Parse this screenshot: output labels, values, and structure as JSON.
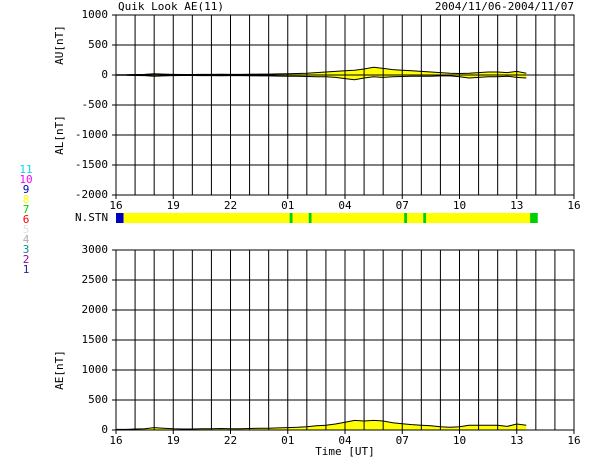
{
  "chart_data": [
    {
      "type": "area",
      "title": "Quik Look AE(11)",
      "subtitle": "2004/11/06-2004/11/07",
      "xlim": [
        0,
        24
      ],
      "xticks": [
        {
          "value": 0,
          "label": "16"
        },
        {
          "value": 3,
          "label": "19"
        },
        {
          "value": 6,
          "label": "22"
        },
        {
          "value": 9,
          "label": "01"
        },
        {
          "value": 12,
          "label": "04"
        },
        {
          "value": 15,
          "label": "07"
        },
        {
          "value": 18,
          "label": "10"
        },
        {
          "value": 21,
          "label": "13"
        },
        {
          "value": 24,
          "label": "16"
        }
      ],
      "xgrid": [
        1,
        2,
        3,
        4,
        5,
        6,
        7,
        8,
        9,
        10,
        11,
        12,
        13,
        14,
        15,
        16,
        17,
        18,
        19,
        20,
        21,
        22,
        23
      ],
      "ylim": [
        -2000,
        1000
      ],
      "yticks": [
        -2000,
        -1500,
        -1000,
        -500,
        0,
        500,
        1000
      ],
      "ylabels": [
        {
          "text": "AU[nT]",
          "at": 500
        },
        {
          "text": "AL[nT]",
          "at": -1000
        }
      ],
      "x": [
        0,
        0.5,
        1,
        1.5,
        2,
        2.5,
        3,
        3.5,
        4,
        4.5,
        5,
        5.5,
        6,
        6.5,
        7,
        7.5,
        8,
        8.5,
        9,
        9.5,
        10,
        10.5,
        11,
        11.5,
        12,
        12.5,
        13,
        13.5,
        14,
        14.5,
        15,
        15.5,
        16,
        16.5,
        17,
        17.5,
        18,
        18.5,
        19,
        19.5,
        20,
        20.5,
        21,
        21.5
      ],
      "series": [
        {
          "color": "#000000",
          "fill": "#ffff00",
          "values": [
            5,
            5,
            8,
            10,
            20,
            15,
            10,
            8,
            8,
            10,
            10,
            12,
            10,
            10,
            12,
            15,
            15,
            18,
            20,
            25,
            30,
            40,
            50,
            60,
            70,
            80,
            100,
            130,
            110,
            90,
            80,
            70,
            60,
            50,
            40,
            30,
            25,
            30,
            40,
            50,
            50,
            40,
            60,
            30
          ]
        },
        {
          "color": "#000000",
          "fill": "#ffff00",
          "values": [
            -5,
            -5,
            -8,
            -10,
            -20,
            -15,
            -10,
            -8,
            -8,
            -10,
            -10,
            -12,
            -10,
            -10,
            -12,
            -15,
            -15,
            -18,
            -20,
            -20,
            -25,
            -30,
            -30,
            -40,
            -60,
            -80,
            -50,
            -30,
            -40,
            -30,
            -25,
            -20,
            -20,
            -20,
            -15,
            -15,
            -30,
            -50,
            -40,
            -30,
            -30,
            -20,
            -40,
            -50
          ]
        }
      ]
    },
    {
      "type": "stations",
      "label": "N.STN",
      "xlim": [
        0,
        24
      ],
      "categories": [
        11,
        10,
        9,
        8,
        7,
        6,
        5,
        4,
        3,
        2,
        1
      ],
      "colors": [
        "#00e0e0",
        "#ff00ff",
        "#0000c0",
        "#ffff00",
        "#00d000",
        "#ff0000",
        "#e0e0e0",
        "#b0b0b0",
        "#009090",
        "#a000a0",
        "#2020a0"
      ],
      "starts": [
        0,
        0.4,
        9.1,
        9.25,
        10.1,
        10.25,
        15.1,
        15.25,
        16.1,
        16.25,
        21.7
      ],
      "ends": [
        0.4,
        9.1,
        9.25,
        10.1,
        10.25,
        15.1,
        15.25,
        16.1,
        16.25,
        21.7,
        22.1
      ],
      "values": [
        9,
        8,
        7,
        8,
        7,
        8,
        7,
        8,
        7,
        8,
        7
      ]
    },
    {
      "type": "area",
      "xlabel": "Time [UT]",
      "xlim": [
        0,
        24
      ],
      "xticks": [
        {
          "value": 0,
          "label": "16"
        },
        {
          "value": 3,
          "label": "19"
        },
        {
          "value": 6,
          "label": "22"
        },
        {
          "value": 9,
          "label": "01"
        },
        {
          "value": 12,
          "label": "04"
        },
        {
          "value": 15,
          "label": "07"
        },
        {
          "value": 18,
          "label": "10"
        },
        {
          "value": 21,
          "label": "13"
        },
        {
          "value": 24,
          "label": "16"
        }
      ],
      "xgrid": [
        1,
        2,
        3,
        4,
        5,
        6,
        7,
        8,
        9,
        10,
        11,
        12,
        13,
        14,
        15,
        16,
        17,
        18,
        19,
        20,
        21,
        22,
        23
      ],
      "ylim": [
        0,
        3000
      ],
      "yticks": [
        0,
        500,
        1000,
        1500,
        2000,
        2500,
        3000
      ],
      "ylabels": [
        {
          "text": "AE[nT]",
          "at": 1000
        }
      ],
      "x": [
        0,
        0.5,
        1,
        1.5,
        2,
        2.5,
        3,
        3.5,
        4,
        4.5,
        5,
        5.5,
        6,
        6.5,
        7,
        7.5,
        8,
        8.5,
        9,
        9.5,
        10,
        10.5,
        11,
        11.5,
        12,
        12.5,
        13,
        13.5,
        14,
        14.5,
        15,
        15.5,
        16,
        16.5,
        17,
        17.5,
        18,
        18.5,
        19,
        19.5,
        20,
        20.5,
        21,
        21.5
      ],
      "series": [
        {
          "color": "#000000",
          "fill": "#ffff00",
          "values": [
            10,
            10,
            16,
            20,
            40,
            30,
            20,
            16,
            16,
            20,
            20,
            24,
            20,
            20,
            24,
            30,
            30,
            36,
            40,
            45,
            55,
            70,
            80,
            100,
            130,
            160,
            150,
            160,
            150,
            120,
            105,
            90,
            80,
            70,
            55,
            45,
            55,
            80,
            80,
            80,
            80,
            60,
            100,
            80
          ]
        }
      ]
    }
  ]
}
